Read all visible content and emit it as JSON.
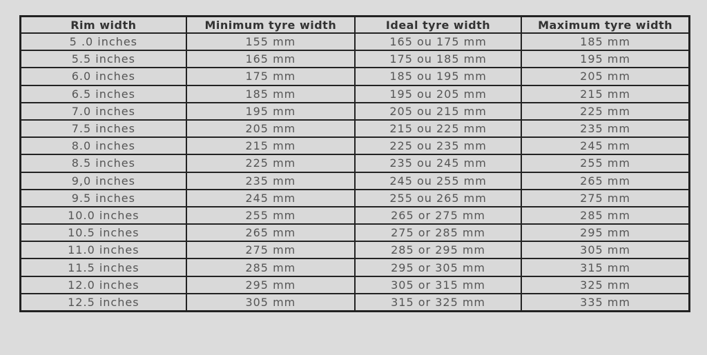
{
  "table": {
    "headers": [
      "Rim width",
      "Minimum tyre width",
      "Ideal tyre width",
      "Maximum tyre width"
    ],
    "rows": [
      [
        "5 .0 inches",
        "155 mm",
        "165 ou 175 mm",
        "185 mm"
      ],
      [
        "5.5 inches",
        "165 mm",
        "175 ou 185 mm",
        "195 mm"
      ],
      [
        "6.0 inches",
        "175 mm",
        "185 ou 195 mm",
        "205 mm"
      ],
      [
        "6.5 inches",
        "185 mm",
        "195 ou 205 mm",
        "215 mm"
      ],
      [
        "7.0 inches",
        "195 mm",
        "205 ou 215 mm",
        "225 mm"
      ],
      [
        "7.5 inches",
        "205 mm",
        "215 ou 225 mm",
        "235 mm"
      ],
      [
        "8.0 inches",
        "215 mm",
        "225 ou 235 mm",
        "245 mm"
      ],
      [
        "8.5 inches",
        "225 mm",
        "235 ou 245 mm",
        "255 mm"
      ],
      [
        "9,0 inches",
        "235 mm",
        "245 ou 255 mm",
        "265 mm"
      ],
      [
        "9.5 inches",
        "245 mm",
        "255 ou 265 mm",
        "275 mm"
      ],
      [
        "10.0 inches",
        "255 mm",
        "265 or 275 mm",
        "285 mm"
      ],
      [
        "10.5 inches",
        "265 mm",
        "275 or 285 mm",
        "295 mm"
      ],
      [
        "11.0 inches",
        "275 mm",
        "285 or 295 mm",
        "305 mm"
      ],
      [
        "11.5 inches",
        "285 mm",
        "295 or 305 mm",
        "315 mm"
      ],
      [
        "12.0 inches",
        "295 mm",
        "305 or 315 mm",
        "325 mm"
      ],
      [
        "12.5 inches",
        "305 mm",
        "315 or 325 mm",
        "335 mm"
      ]
    ]
  }
}
